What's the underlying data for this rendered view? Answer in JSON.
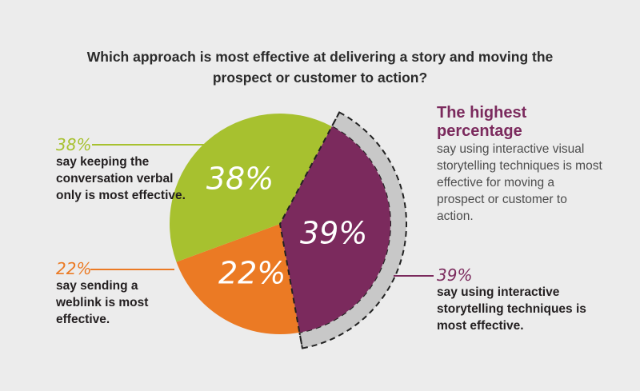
{
  "title": "Which approach is most effective at delivering a story and moving the prospect or customer to action?",
  "chart_data": {
    "type": "pie",
    "title": "Which approach is most effective at delivering a story and moving the prospect or customer to action?",
    "slices": [
      {
        "key": "verbal",
        "value": 38,
        "label": "38%",
        "color": "#a7c12f"
      },
      {
        "key": "interactive",
        "value": 39,
        "label": "39%",
        "color": "#7b2a5d"
      },
      {
        "key": "weblink",
        "value": 22,
        "label": "22%",
        "color": "#eb7a24"
      }
    ],
    "highlight_color": "#c8c8c8"
  },
  "annotations": {
    "verbal": {
      "pct": "38%",
      "text": "say keeping the conversation verbal only is most effective.",
      "color": "#a7c12f"
    },
    "weblink": {
      "pct": "22%",
      "text": "say sending a weblink is most effective.",
      "color": "#eb7a24"
    },
    "interactive": {
      "pct": "39%",
      "text": "say using interactive storytelling techniques is most effective.",
      "color": "#7b2a5d"
    }
  },
  "highlight": {
    "heading": "The highest percentage",
    "body": "say using interactive visual storytelling techniques is most effective for moving a prospect or customer to action."
  }
}
